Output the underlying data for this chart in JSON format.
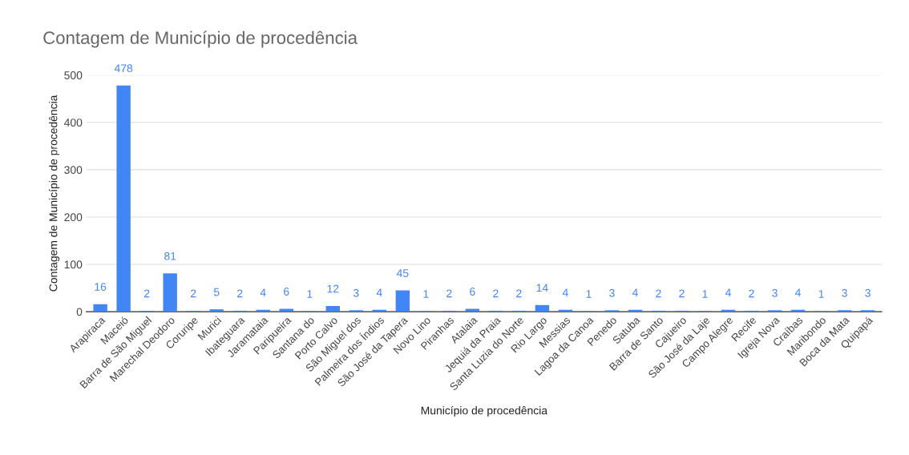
{
  "chart_data": {
    "type": "bar",
    "title": "Contagem de Município de procedência",
    "xlabel": "Município de procedência",
    "ylabel": "Contagem de Município de procedência",
    "categories": [
      "Arapiraca",
      "Maceió",
      "Barra de São Miguel",
      "Marechal Deodoro",
      "Coruripe",
      "Murici",
      "Ibateguara",
      "Jaramataia",
      "Paripueira",
      "Santana do",
      "Porto Calvo",
      "São Miguel dos",
      "Palmeira dos Índios",
      "São José da Tapera",
      "Novo Lino",
      "Piranhas",
      "Atalaia",
      "Jequiá da Praia",
      "Santa Luzia do Norte",
      "Rio Largo",
      "Messias",
      "Lagoa da Canoa",
      "Penedo",
      "Satuba",
      "Barra de Santo",
      "Cajueiro",
      "São José da Laje",
      "Campo Alegre",
      "Recife",
      "Igreja Nova",
      "Craíbas",
      "Maribondo",
      "Boca da Mata",
      "Quipapá"
    ],
    "series": [
      {
        "color": "#4285f4",
        "values": [
          16,
          478,
          2,
          81,
          2,
          5,
          2,
          4,
          6,
          1,
          12,
          3,
          4,
          45,
          1,
          2,
          6,
          2,
          2,
          14,
          4,
          1,
          3,
          4,
          2,
          2,
          1,
          4,
          2,
          3,
          4,
          1,
          3,
          3
        ]
      }
    ],
    "ylim": [
      0,
      500
    ],
    "yticks": [
      0,
      100,
      200,
      300,
      400,
      500
    ],
    "grid": "y",
    "data_labels": true
  }
}
